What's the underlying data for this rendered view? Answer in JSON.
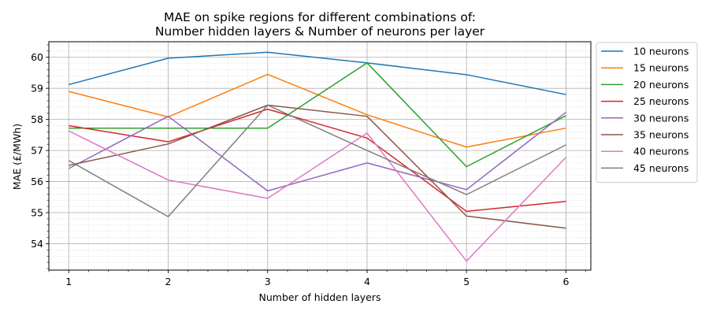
{
  "chart_data": {
    "type": "line",
    "title": "MAE on spike regions for different combinations of:",
    "subtitle": "Number hidden layers & Number of neurons per layer",
    "xlabel": "Number of hidden layers",
    "ylabel": "MAE (£/MWh)",
    "x": [
      1,
      2,
      3,
      4,
      5,
      6
    ],
    "xlim": [
      0.8,
      6.25
    ],
    "ylim": [
      53.15,
      60.5
    ],
    "xticks": [
      1,
      2,
      3,
      4,
      5,
      6
    ],
    "yticks": [
      54,
      55,
      56,
      57,
      58,
      59,
      60
    ],
    "grid": true,
    "minor_grid": true,
    "legend_position": "outside-right",
    "series": [
      {
        "name": "10 neurons",
        "color": "#1f77b4",
        "values": [
          59.12,
          59.97,
          60.16,
          59.82,
          59.44,
          58.8
        ]
      },
      {
        "name": "15 neurons",
        "color": "#ff7f0e",
        "values": [
          58.9,
          58.08,
          59.45,
          58.15,
          57.11,
          57.72
        ]
      },
      {
        "name": "20 neurons",
        "color": "#2ca02c",
        "values": [
          57.72,
          57.72,
          57.72,
          59.82,
          56.48,
          58.12
        ]
      },
      {
        "name": "25 neurons",
        "color": "#d62728",
        "values": [
          57.8,
          57.28,
          58.33,
          57.4,
          55.04,
          55.36
        ]
      },
      {
        "name": "30 neurons",
        "color": "#9467bd",
        "values": [
          56.42,
          58.1,
          55.7,
          56.6,
          55.74,
          58.23
        ]
      },
      {
        "name": "35 neurons",
        "color": "#8c564b",
        "values": [
          56.52,
          57.21,
          58.46,
          58.1,
          54.89,
          54.5
        ]
      },
      {
        "name": "40 neurons",
        "color": "#e377c2",
        "values": [
          57.63,
          56.05,
          55.46,
          57.56,
          53.44,
          56.78
        ]
      },
      {
        "name": "45 neurons",
        "color": "#7f7f7f",
        "values": [
          56.68,
          54.87,
          58.46,
          57.0,
          55.58,
          57.18
        ]
      }
    ]
  }
}
